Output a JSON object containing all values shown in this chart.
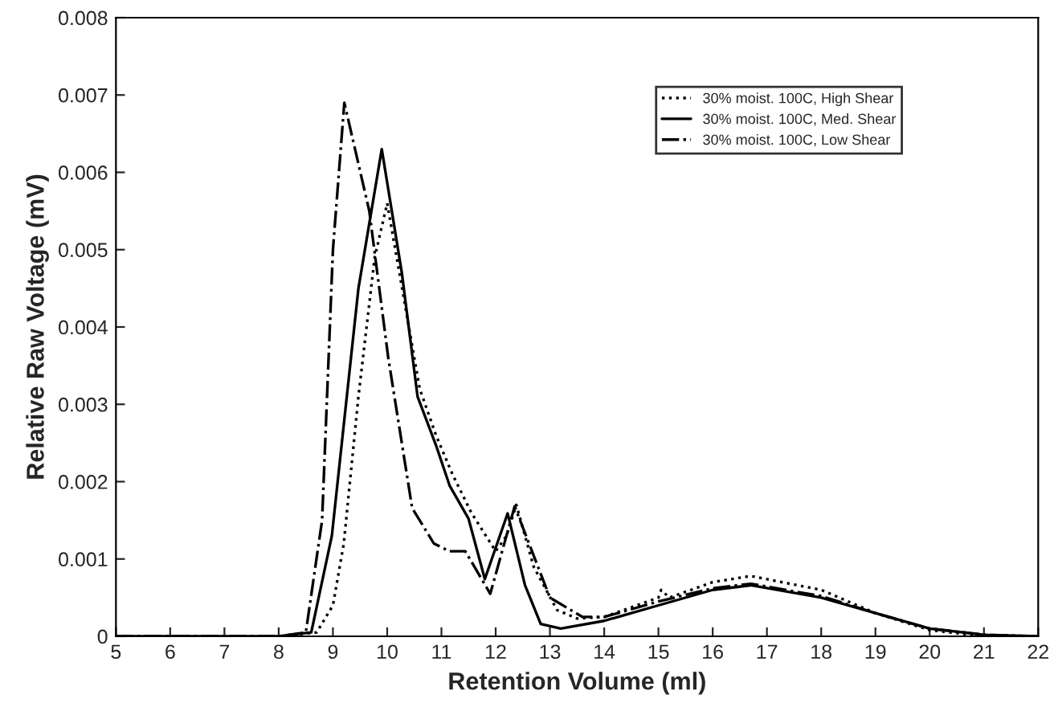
{
  "chart_data": {
    "type": "line",
    "xlabel": "Retention Volume (ml)",
    "ylabel": "Relative Raw Voltage (mV)",
    "xlim": [
      5,
      22
    ],
    "xticks": [
      5,
      6,
      7,
      8,
      9,
      10,
      11,
      12,
      13,
      14,
      15,
      16,
      17,
      18,
      19,
      20,
      21,
      22
    ],
    "ylim": [
      0,
      0.008
    ],
    "yticks": [
      0,
      0.001,
      0.002,
      0.003,
      0.004,
      0.005,
      0.006,
      0.007,
      0.008
    ],
    "grid": false,
    "legend": "top right",
    "marker": "none",
    "series": [
      {
        "name": "30% moist. 100C, High Shear",
        "color": "#000000",
        "line_style": "dotted",
        "x": [
          5,
          8,
          8.7,
          9.0,
          9.2,
          9.47,
          9.77,
          10.0,
          10.3,
          10.6,
          10.9,
          11.2,
          11.55,
          12.0,
          12.2,
          12.38,
          12.7,
          13.13,
          13.5,
          14,
          15,
          15.05,
          15.2,
          16,
          16.7,
          18,
          19,
          20,
          21,
          22
        ],
        "values": [
          0,
          0,
          5e-05,
          0.0004,
          0.0012,
          0.0031,
          0.0049,
          0.0056,
          0.0044,
          0.0032,
          0.0026,
          0.0021,
          0.0016,
          0.0011,
          0.0013,
          0.0017,
          0.0009,
          0.00034,
          0.00023,
          0.00025,
          0.0005,
          0.0006,
          0.0005,
          0.0007,
          0.00078,
          0.0006,
          0.0003,
          8e-05,
          0,
          0
        ]
      },
      {
        "name": "30% moist. 100C, Med. Shear",
        "color": "#000000",
        "line_style": "solid",
        "x": [
          5,
          8,
          8.6,
          8.98,
          9.47,
          9.9,
          10.27,
          10.56,
          10.91,
          11.15,
          11.5,
          11.8,
          12.22,
          12.54,
          12.83,
          13.2,
          14,
          15,
          16,
          16.7,
          18,
          19,
          20,
          21,
          22
        ],
        "values": [
          0,
          0,
          5e-05,
          0.0013,
          0.0045,
          0.0063,
          0.0047,
          0.0031,
          0.00245,
          0.00195,
          0.00152,
          0.00074,
          0.00159,
          0.00066,
          0.00016,
          0.0001,
          0.0002,
          0.0004,
          0.0006,
          0.00066,
          0.0005,
          0.0003,
          0.0001,
          2e-05,
          0
        ]
      },
      {
        "name": "30% moist. 100C, Low Shear",
        "color": "#000000",
        "line_style": "dashdot",
        "x": [
          5,
          8,
          8.5,
          8.8,
          9.0,
          9.21,
          9.67,
          10.02,
          10.46,
          10.86,
          11.15,
          11.44,
          11.9,
          12.35,
          13.0,
          13.6,
          14,
          15,
          16,
          16.7,
          18,
          19,
          20,
          21,
          22
        ],
        "values": [
          0,
          0,
          5e-05,
          0.0015,
          0.005,
          0.0069,
          0.0055,
          0.0036,
          0.00166,
          0.0012,
          0.0011,
          0.0011,
          0.00055,
          0.00168,
          0.0005,
          0.00025,
          0.00025,
          0.00045,
          0.00062,
          0.00068,
          0.00052,
          0.0003,
          0.0001,
          2e-05,
          0
        ]
      }
    ]
  }
}
